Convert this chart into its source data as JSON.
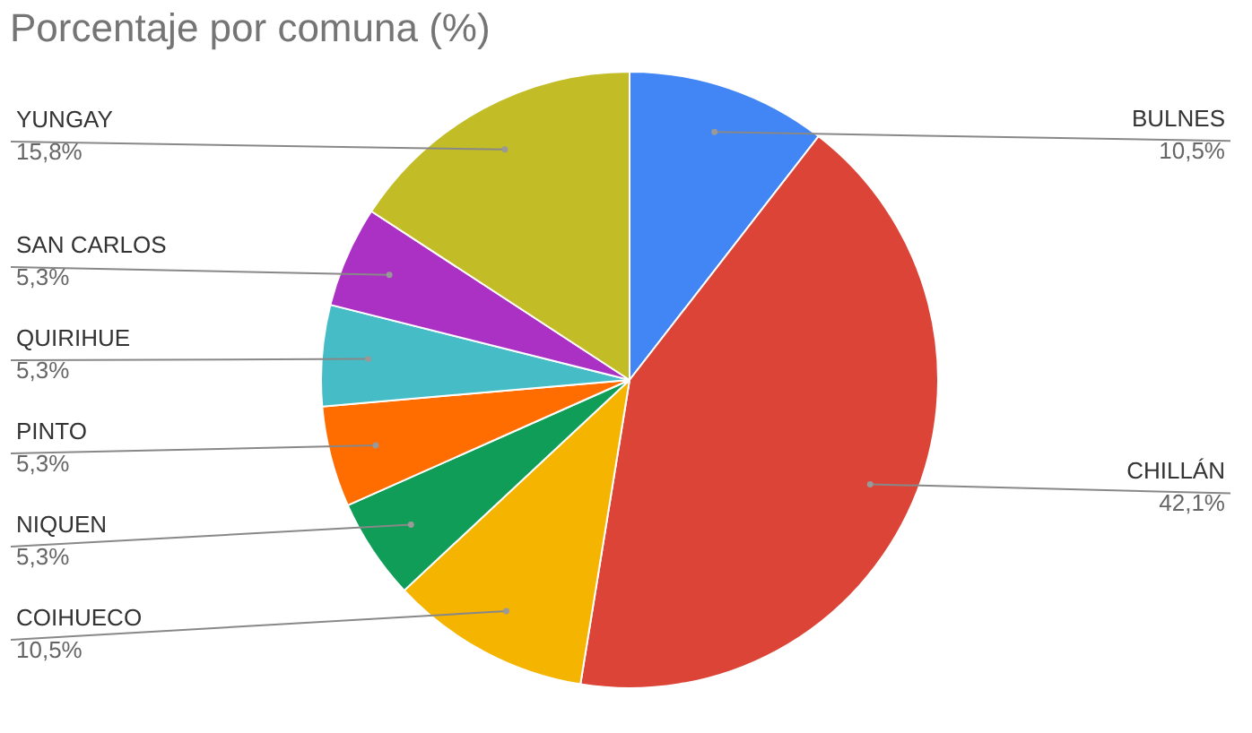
{
  "chart_data": {
    "type": "pie",
    "title": "Porcentaje por comuna (%)",
    "categories": [
      "BULNES",
      "CHILLÁN",
      "COIHUECO",
      "NIQUEN",
      "PINTO",
      "QUIRIHUE",
      "SAN CARLOS",
      "YUNGAY"
    ],
    "values": [
      10.5,
      42.1,
      10.5,
      5.3,
      5.3,
      5.3,
      5.3,
      15.8
    ],
    "value_labels": [
      "10,5%",
      "42,1%",
      "10,5%",
      "5,3%",
      "5,3%",
      "5,3%",
      "5,3%",
      "15,8%"
    ],
    "colors": [
      "#4285f4",
      "#db4437",
      "#f4b400",
      "#0f9d58",
      "#ff6d01",
      "#46bdc6",
      "#ab30c4",
      "#c2bc26"
    ],
    "legend": false
  }
}
